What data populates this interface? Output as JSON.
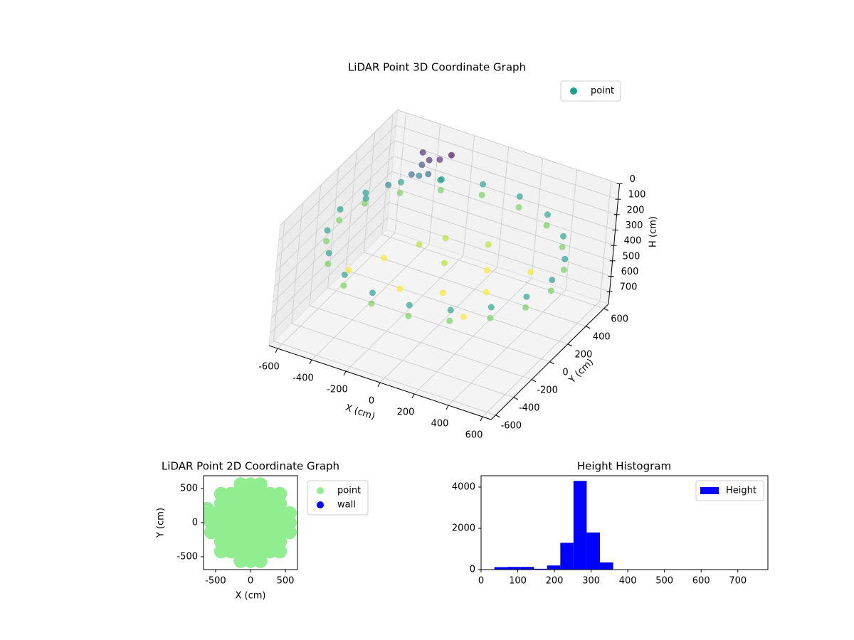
{
  "chart_data": [
    {
      "type": "scatter3d",
      "title": "LiDAR Point 3D Coordinate Graph",
      "xlabel": "X (cm)",
      "ylabel": "Y (cm)",
      "zlabel": "H (cm)",
      "xlim": [
        -650,
        650
      ],
      "ylim": [
        -650,
        650
      ],
      "zlim": [
        0,
        780
      ],
      "z_inverted": true,
      "xticks": [
        -600,
        -400,
        -200,
        0,
        200,
        400,
        600
      ],
      "yticks": [
        -600,
        -400,
        -200,
        0,
        200,
        400,
        600
      ],
      "zticks": [
        0,
        100,
        200,
        300,
        400,
        500,
        600,
        700
      ],
      "grid": true,
      "legend": "upper right",
      "series": [
        {
          "name": "point",
          "color": "#1f9e89",
          "colormap": "viridis",
          "x": [
            620,
            583,
            475,
            310,
            108,
            -108,
            -310,
            -475,
            -583,
            -620,
            -583,
            -475,
            -310,
            -108,
            108,
            310,
            475,
            583,
            620,
            583,
            475,
            310,
            108,
            -108,
            -310,
            -475,
            -583,
            -620,
            -583,
            -475,
            -310,
            -108,
            108,
            310,
            475,
            583,
            -300,
            -100,
            100,
            300,
            200,
            -200,
            0,
            -400,
            400,
            100,
            -100,
            300,
            -500,
            -400,
            -300,
            -550,
            -400,
            -350,
            -300,
            -380,
            -330,
            -420,
            -250
          ],
          "y": [
            0,
            212,
            399,
            537,
            611,
            611,
            537,
            399,
            212,
            0,
            -212,
            -399,
            -537,
            -611,
            -611,
            -537,
            -399,
            -212,
            0,
            212,
            399,
            537,
            611,
            611,
            537,
            399,
            212,
            0,
            -212,
            -399,
            -537,
            -611,
            -611,
            -537,
            -399,
            -212,
            -100,
            -300,
            -200,
            -100,
            100,
            100,
            0,
            -300,
            200,
            300,
            200,
            -350,
            300,
            450,
            500,
            150,
            470,
            450,
            470,
            430,
            410,
            400,
            500
          ],
          "z": [
            260,
            260,
            260,
            260,
            260,
            260,
            260,
            260,
            260,
            260,
            260,
            260,
            260,
            260,
            260,
            260,
            260,
            260,
            330,
            330,
            330,
            330,
            330,
            330,
            330,
            330,
            330,
            330,
            330,
            330,
            330,
            330,
            330,
            330,
            330,
            330,
            400,
            410,
            420,
            400,
            410,
            390,
            380,
            400,
            405,
            395,
            370,
            415,
            230,
            220,
            240,
            250,
            80,
            100,
            90,
            130,
            160,
            190,
            60
          ]
        }
      ]
    },
    {
      "type": "scatter",
      "title": "LiDAR Point 2D Coordinate Graph",
      "xlabel": "X (cm)",
      "ylabel": "Y (cm)",
      "xlim": [
        -673,
        673
      ],
      "ylim": [
        -688,
        688
      ],
      "xticks": [
        -500,
        0,
        500
      ],
      "yticks": [
        -500,
        0,
        500
      ],
      "legend": "outside right",
      "series": [
        {
          "name": "point",
          "color": "#90ee90",
          "x": [
            -620,
            -620,
            -560,
            -560,
            -560,
            -420,
            -420,
            -420,
            -420,
            -420,
            -420,
            -420,
            -280,
            -280,
            -280,
            -280,
            -280,
            -280,
            -280,
            -140,
            -140,
            -140,
            -140,
            -140,
            -140,
            -140,
            -140,
            -140,
            0,
            0,
            0,
            0,
            0,
            0,
            0,
            0,
            0,
            140,
            140,
            140,
            140,
            140,
            140,
            140,
            140,
            140,
            280,
            280,
            280,
            280,
            280,
            280,
            280,
            420,
            420,
            420,
            420,
            420,
            420,
            420,
            560,
            560,
            560
          ],
          "y": [
            200,
            80,
            -140,
            0,
            140,
            -420,
            -280,
            -140,
            0,
            140,
            280,
            420,
            -420,
            -280,
            -140,
            0,
            140,
            280,
            420,
            -560,
            -420,
            -280,
            -140,
            0,
            140,
            280,
            420,
            560,
            -560,
            -420,
            -280,
            -140,
            0,
            140,
            280,
            420,
            560,
            -560,
            -420,
            -280,
            -140,
            0,
            140,
            280,
            420,
            560,
            -420,
            -280,
            -140,
            0,
            140,
            280,
            420,
            -420,
            -280,
            -140,
            0,
            140,
            280,
            420,
            -140,
            0,
            140
          ]
        },
        {
          "name": "wall",
          "color": "#0000ff",
          "x": [],
          "y": []
        }
      ]
    },
    {
      "type": "histogram",
      "title": "Height Histogram",
      "xlim": [
        0,
        782
      ],
      "ylim": [
        0,
        4550
      ],
      "xticks": [
        0,
        100,
        200,
        300,
        400,
        500,
        600,
        700
      ],
      "yticks": [
        0,
        2000,
        4000
      ],
      "legend": "upper right",
      "bins": [
        36,
        72,
        108,
        144,
        180,
        216,
        252,
        288,
        324,
        360,
        396,
        432,
        468,
        504,
        540,
        576,
        612,
        648,
        684,
        720,
        756
      ],
      "series": [
        {
          "name": "Height",
          "color": "#0000ff",
          "values": [
            120,
            130,
            130,
            40,
            200,
            1300,
            4300,
            1800,
            350,
            10,
            5,
            5,
            5,
            5,
            5,
            5,
            5,
            5,
            5,
            5
          ]
        }
      ]
    }
  ]
}
